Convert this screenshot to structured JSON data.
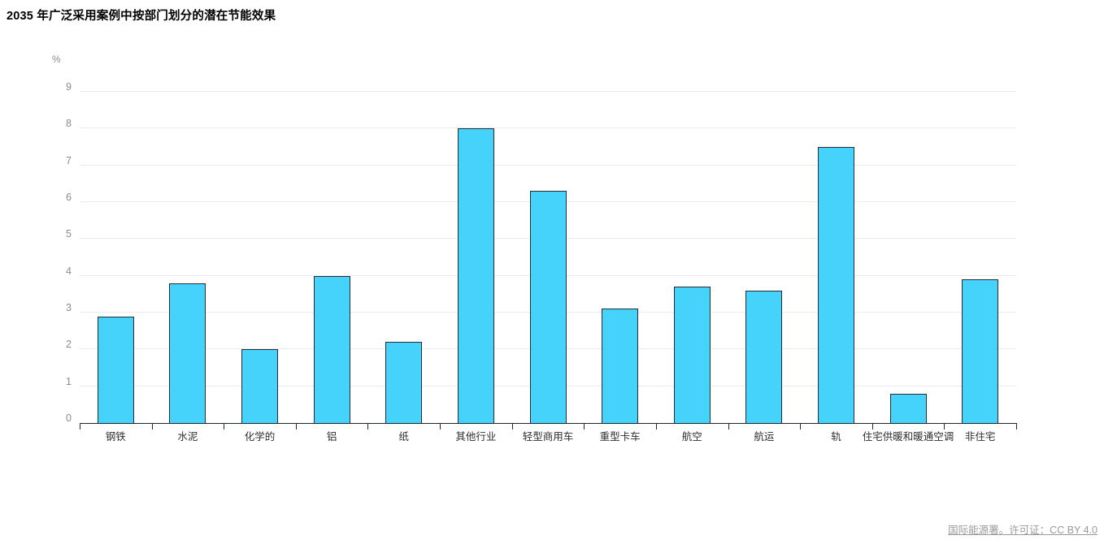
{
  "page": {
    "title": "2035 年广泛采用案例中按部门划分的潜在节能效果"
  },
  "footer": {
    "source_link_text": "国际能源署。许可证：CC BY 4.0"
  },
  "colors": {
    "bar_fill": "#45d3fc",
    "bar_border": "#262c31",
    "axis": "#21262b",
    "gridline": "#ebebeb",
    "y_label_text": "#8c8c8c",
    "x_label_text": "#2e2e2e",
    "footer_text": "#9a9a9a"
  },
  "chart_data": {
    "type": "bar",
    "title": "2035 年广泛采用案例中按部门划分的潜在节能效果",
    "unit": "%",
    "xlabel": "",
    "ylabel": "%",
    "ylim": [
      0,
      9
    ],
    "ytick_step": 1,
    "yticks": [
      0,
      1,
      2,
      3,
      4,
      5,
      6,
      7,
      8,
      9
    ],
    "grid": "horizontal",
    "legend": "none",
    "categories": [
      "钢铁",
      "水泥",
      "化学的",
      "铝",
      "纸",
      "其他行业",
      "轻型商用车",
      "重型卡车",
      "航空",
      "航运",
      "轨",
      "住宅供暖和暖通空调",
      "非住宅"
    ],
    "values": [
      2.9,
      3.8,
      2.0,
      4.0,
      2.2,
      8.0,
      6.3,
      3.1,
      3.7,
      3.6,
      7.5,
      0.8,
      3.9
    ]
  }
}
